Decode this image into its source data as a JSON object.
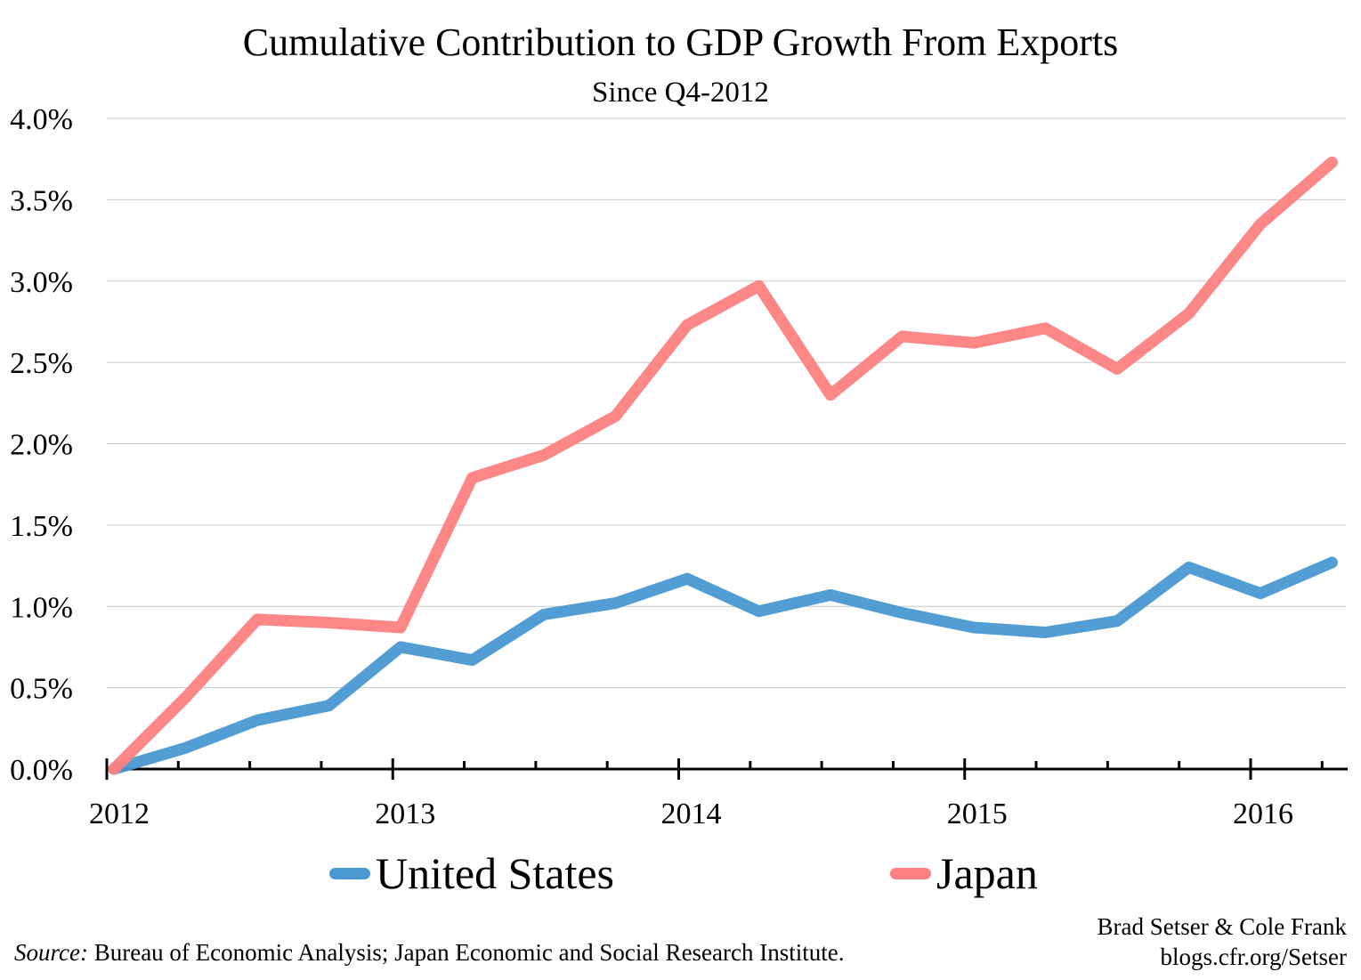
{
  "chart_data": {
    "type": "line",
    "title": "Cumulative Contribution to GDP Growth From Exports",
    "subtitle": "Since Q4-2012",
    "xlabel": "",
    "ylabel": "",
    "x_ticks": [
      "2012",
      "2013",
      "2014",
      "2015",
      "2016"
    ],
    "y_ticks": [
      "0.0%",
      "0.5%",
      "1.0%",
      "1.5%",
      "2.0%",
      "2.5%",
      "3.0%",
      "3.5%",
      "4.0%"
    ],
    "ylim": [
      0,
      4.0
    ],
    "y_unit": "%",
    "grid": "horizontal",
    "legend_position": "bottom",
    "x": [
      2012.0,
      2012.25,
      2012.5,
      2012.75,
      2013.0,
      2013.25,
      2013.5,
      2013.75,
      2014.0,
      2014.25,
      2014.5,
      2014.75,
      2015.0,
      2015.25,
      2015.5,
      2015.75,
      2016.0,
      2016.25
    ],
    "series": [
      {
        "name": "United States",
        "color": "#4a98d3",
        "values": [
          0.0,
          0.13,
          0.3,
          0.39,
          0.75,
          0.67,
          0.95,
          1.02,
          1.17,
          0.97,
          1.07,
          0.96,
          0.87,
          0.84,
          0.91,
          1.24,
          1.08,
          1.27
        ]
      },
      {
        "name": "Japan",
        "color": "#fd7f7f",
        "values": [
          0.0,
          0.44,
          0.92,
          0.9,
          0.87,
          1.79,
          1.93,
          2.17,
          2.73,
          2.97,
          2.3,
          2.66,
          2.62,
          2.71,
          2.46,
          2.8,
          3.35,
          3.73
        ]
      }
    ]
  },
  "credit": {
    "line1": "Brad Setser & Cole Frank",
    "line2": "blogs.cfr.org/Setser"
  },
  "source": {
    "label": "Source:",
    "text": " Bureau of Economic Analysis; Japan Economic and Social Research Institute."
  }
}
